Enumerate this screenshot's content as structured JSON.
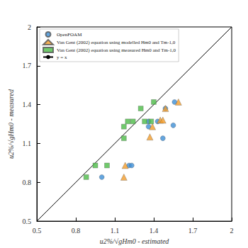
{
  "chart_data": {
    "type": "scatter",
    "x_label": "u2%/√gHm0 - estimated",
    "y_label": "u2%/√gHm0 - measured",
    "xlim": [
      0.5,
      2
    ],
    "ylim": [
      0.5,
      2
    ],
    "xticks": [
      0.5,
      0.8,
      1.1,
      1.4,
      1.7,
      2
    ],
    "yticks": [
      0.5,
      0.8,
      1.1,
      1.4,
      1.7,
      2
    ],
    "grid": false,
    "legend": "upper left",
    "series": [
      {
        "name": "OpenFOAM",
        "color": "#3d8fd6",
        "marker": "circle",
        "x": [
          1.0,
          1.21,
          1.23,
          1.36,
          1.43,
          1.47,
          1.49,
          1.55,
          1.56,
          1.36
        ],
        "values": [
          0.84,
          0.93,
          0.93,
          1.27,
          1.27,
          1.14,
          1.37,
          1.24,
          1.42,
          1.23
        ]
      },
      {
        "name": "Van Gent (2002) equation using modelled Hm0 and Tm-1,0",
        "color": "#f39c2b",
        "marker": "triangle",
        "x": [
          1.17,
          1.18,
          1.37,
          1.39,
          1.45,
          1.47,
          1.49,
          1.59
        ],
        "values": [
          0.84,
          0.93,
          1.15,
          1.23,
          1.28,
          1.28,
          1.37,
          1.42
        ]
      },
      {
        "name": "Van Gent (2002) equation using measured Hm0 and Tm-1,0",
        "color": "#4cbb47",
        "marker": "square",
        "x": [
          0.88,
          0.95,
          1.04,
          1.17,
          1.17,
          1.2,
          1.24,
          1.3,
          1.33,
          1.38,
          1.4
        ],
        "values": [
          0.84,
          0.93,
          0.93,
          1.14,
          1.23,
          1.27,
          1.27,
          1.37,
          1.27,
          1.27,
          1.42
        ]
      },
      {
        "name": "y = x",
        "color": "#000000",
        "type": "line",
        "line_style": "solid",
        "x": [
          0.5,
          2
        ],
        "values": [
          0.5,
          2
        ]
      }
    ]
  }
}
